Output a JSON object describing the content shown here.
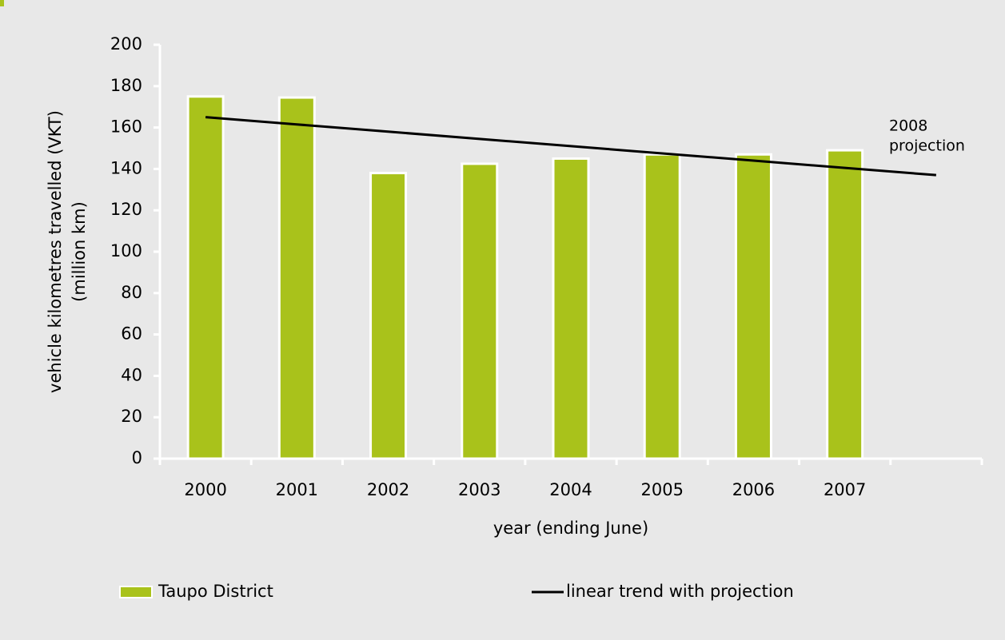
{
  "chart_data": {
    "type": "bar",
    "categories": [
      "2000",
      "2001",
      "2002",
      "2003",
      "2004",
      "2005",
      "2006",
      "2007",
      null
    ],
    "series": [
      {
        "name": "Taupo District",
        "type": "bar",
        "color": "#a9c21b",
        "values": [
          175,
          174.5,
          138,
          142.5,
          145,
          147,
          147,
          149,
          null
        ]
      },
      {
        "name": "linear trend with projection",
        "type": "line",
        "color": "#000000",
        "values": [
          165,
          161.5,
          158,
          154.5,
          151,
          147.5,
          144,
          140.5,
          137
        ]
      }
    ],
    "ylim": [
      0,
      200
    ],
    "yticks": [
      0,
      20,
      40,
      60,
      80,
      100,
      120,
      140,
      160,
      180,
      200
    ],
    "y_label": [
      "vehicle kilometres travelled (VKT)",
      "(million km)"
    ],
    "x_label": "year (ending June)",
    "annotation": [
      "2008",
      "projection"
    ]
  }
}
